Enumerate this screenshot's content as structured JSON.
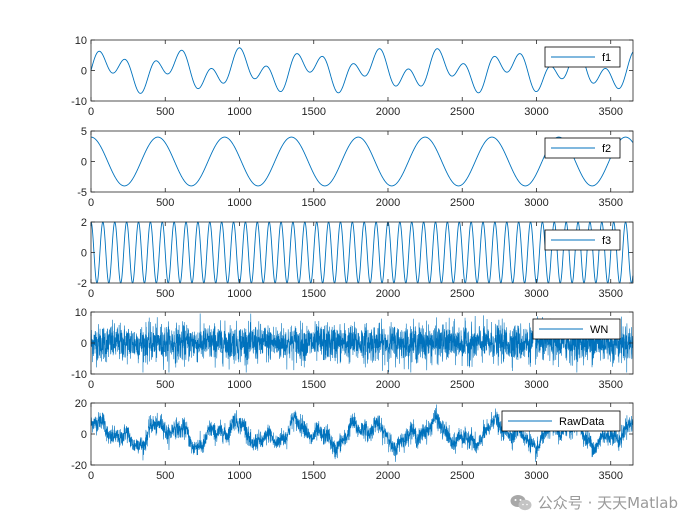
{
  "watermark": {
    "text": "公众号 · 天天Matlab",
    "icon": "wechat-icon"
  },
  "colors": {
    "line": "#0072BD",
    "axis": "#262626",
    "background": "#ffffff"
  },
  "chart_data": [
    {
      "type": "line",
      "legend": "f1",
      "legend_position": "top-right",
      "xlim": [
        0,
        3650
      ],
      "ylim": [
        -10,
        10
      ],
      "xticks": [
        0,
        500,
        1000,
        1500,
        2000,
        2500,
        3000,
        3500
      ],
      "yticks": [
        -10,
        0,
        10
      ],
      "series": [
        {
          "name": "f1",
          "formula": "3.5*sin(2*pi*x/450)+4*sin(2*pi*x/190)",
          "x_range": [
            0,
            3650
          ]
        }
      ]
    },
    {
      "type": "line",
      "legend": "f2",
      "legend_position": "top-right",
      "xlim": [
        0,
        3650
      ],
      "ylim": [
        -5,
        5
      ],
      "xticks": [
        0,
        500,
        1000,
        1500,
        2000,
        2500,
        3000,
        3500
      ],
      "yticks": [
        -5,
        0,
        5
      ],
      "series": [
        {
          "name": "f2",
          "formula": "4*cos(2*pi*x/450)",
          "x_range": [
            0,
            3650
          ]
        }
      ]
    },
    {
      "type": "line",
      "legend": "f3",
      "legend_position": "top-right",
      "xlim": [
        0,
        3650
      ],
      "ylim": [
        -2,
        2
      ],
      "xticks": [
        0,
        500,
        1000,
        1500,
        2000,
        2500,
        3000,
        3500
      ],
      "yticks": [
        -2,
        0,
        2
      ],
      "series": [
        {
          "name": "f3",
          "formula": "2*cos(2*pi*x/80)",
          "x_range": [
            0,
            3650
          ]
        }
      ]
    },
    {
      "type": "line",
      "legend": "WN",
      "legend_position": "top-right",
      "xlim": [
        0,
        3650
      ],
      "ylim": [
        -10,
        10
      ],
      "xticks": [
        0,
        500,
        1000,
        1500,
        2000,
        2500,
        3000,
        3500
      ],
      "yticks": [
        -10,
        0,
        10
      ],
      "series": [
        {
          "name": "WN",
          "formula": "white noise, std 3",
          "x_range": [
            0,
            3650
          ]
        }
      ]
    },
    {
      "type": "line",
      "legend": "RawData",
      "legend_position": "top-right",
      "xlim": [
        0,
        3650
      ],
      "ylim": [
        -20,
        20
      ],
      "xticks": [
        0,
        500,
        1000,
        1500,
        2000,
        2500,
        3000,
        3500
      ],
      "yticks": [
        -20,
        0,
        20
      ],
      "series": [
        {
          "name": "RawData",
          "formula": "f1 + f2 + f3 + WN",
          "x_range": [
            0,
            3650
          ]
        }
      ]
    }
  ]
}
